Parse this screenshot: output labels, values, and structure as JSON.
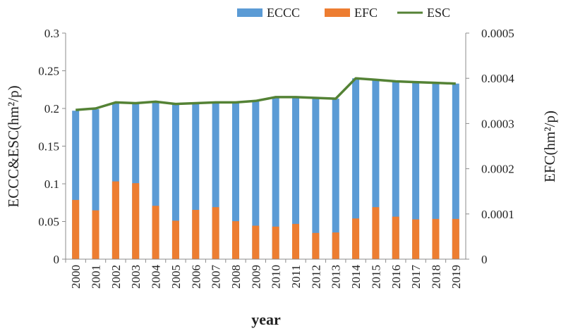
{
  "chart_data": {
    "type": "bar+line",
    "categories": [
      "2000",
      "2001",
      "2002",
      "2003",
      "2004",
      "2005",
      "2006",
      "2007",
      "2008",
      "2009",
      "2010",
      "2011",
      "2012",
      "2013",
      "2014",
      "2015",
      "2016",
      "2017",
      "2018",
      "2019"
    ],
    "series": [
      {
        "name": "ECCC",
        "type": "bar",
        "axis": "left",
        "color": "#5b9bd5",
        "values": [
          0.197,
          0.199,
          0.208,
          0.207,
          0.209,
          0.206,
          0.207,
          0.208,
          0.208,
          0.21,
          0.215,
          0.215,
          0.214,
          0.213,
          0.24,
          0.238,
          0.236,
          0.235,
          0.234,
          0.233
        ]
      },
      {
        "name": "EFC",
        "type": "bar",
        "axis": "right",
        "color": "#ed7d31",
        "values": [
          0.000131,
          0.000108,
          0.000172,
          0.000168,
          0.000118,
          8.5e-05,
          0.000109,
          0.000115,
          8.4e-05,
          7.4e-05,
          7.2e-05,
          7.8e-05,
          5.8e-05,
          5.9e-05,
          9e-05,
          0.000115,
          9.4e-05,
          8.8e-05,
          8.9e-05,
          8.9e-05
        ]
      },
      {
        "name": "ESC",
        "type": "line",
        "axis": "left",
        "color": "#548235",
        "values": [
          0.198,
          0.2,
          0.208,
          0.207,
          0.209,
          0.206,
          0.207,
          0.208,
          0.208,
          0.21,
          0.215,
          0.215,
          0.214,
          0.213,
          0.24,
          0.238,
          0.236,
          0.235,
          0.234,
          0.233
        ]
      }
    ],
    "xlabel": "year",
    "ylabel_left": "ECCC&ESC(hm²/p)",
    "ylabel_right": "EFC(hm²/p)",
    "ylim_left": [
      0,
      0.3
    ],
    "ylim_right": [
      0,
      0.0005
    ],
    "yticks_left": [
      "0",
      "0.05",
      "0.1",
      "0.15",
      "0.2",
      "0.25",
      "0.3"
    ],
    "yticks_right": [
      "0",
      "0.0001",
      "0.0002",
      "0.0003",
      "0.0004",
      "0.0005"
    ],
    "legend_position": "top"
  }
}
